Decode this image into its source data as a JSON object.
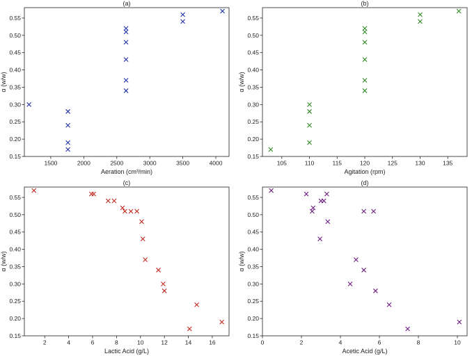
{
  "chart_data": [
    {
      "type": "scatter",
      "title": "(a)",
      "xlabel": "Aeration (cm³/min)",
      "ylabel": "α (w/w)",
      "color": "#1f2fa8",
      "marker": "x",
      "xlim": [
        1100,
        4200
      ],
      "ylim": [
        0.15,
        0.58
      ],
      "xticks": [
        1500,
        2000,
        2500,
        3000,
        3500,
        4000
      ],
      "yticks": [
        0.15,
        0.2,
        0.25,
        0.3,
        0.35,
        0.4,
        0.45,
        0.5,
        0.55
      ],
      "points": [
        [
          1170,
          0.3
        ],
        [
          1760,
          0.28
        ],
        [
          1760,
          0.24
        ],
        [
          1760,
          0.19
        ],
        [
          1760,
          0.17
        ],
        [
          2640,
          0.52
        ],
        [
          2640,
          0.51
        ],
        [
          2640,
          0.48
        ],
        [
          2640,
          0.43
        ],
        [
          2640,
          0.37
        ],
        [
          2640,
          0.34
        ],
        [
          3500,
          0.56
        ],
        [
          3500,
          0.54
        ],
        [
          4100,
          0.57
        ]
      ]
    },
    {
      "type": "scatter",
      "title": "(b)",
      "xlabel": "Agitation (rpm)",
      "ylabel": "α (w/w)",
      "color": "#2e8b22",
      "marker": "x",
      "xlim": [
        101.5,
        138.5
      ],
      "ylim": [
        0.15,
        0.58
      ],
      "xticks": [
        105,
        110,
        115,
        120,
        125,
        130,
        135
      ],
      "yticks": [
        0.15,
        0.2,
        0.25,
        0.3,
        0.35,
        0.4,
        0.45,
        0.5,
        0.55
      ],
      "points": [
        [
          103,
          0.17
        ],
        [
          110,
          0.3
        ],
        [
          110,
          0.28
        ],
        [
          110,
          0.24
        ],
        [
          110,
          0.19
        ],
        [
          120,
          0.52
        ],
        [
          120,
          0.51
        ],
        [
          120,
          0.48
        ],
        [
          120,
          0.43
        ],
        [
          120,
          0.37
        ],
        [
          120,
          0.34
        ],
        [
          130,
          0.56
        ],
        [
          130,
          0.54
        ],
        [
          137,
          0.57
        ]
      ]
    },
    {
      "type": "scatter",
      "title": "(c)",
      "xlabel": "Lactic Acid (g/L)",
      "ylabel": "α (w/w)",
      "color": "#c0271d",
      "marker": "x",
      "xlim": [
        0.3,
        17.4
      ],
      "ylim": [
        0.15,
        0.58
      ],
      "xticks": [
        2,
        4,
        6,
        8,
        10,
        12,
        14,
        16
      ],
      "yticks": [
        0.15,
        0.2,
        0.25,
        0.3,
        0.35,
        0.4,
        0.45,
        0.5,
        0.55
      ],
      "points": [
        [
          1.1,
          0.57
        ],
        [
          5.9,
          0.56
        ],
        [
          6.1,
          0.56
        ],
        [
          7.3,
          0.54
        ],
        [
          7.8,
          0.54
        ],
        [
          8.5,
          0.52
        ],
        [
          8.7,
          0.51
        ],
        [
          9.2,
          0.51
        ],
        [
          9.7,
          0.51
        ],
        [
          10.1,
          0.48
        ],
        [
          10.2,
          0.43
        ],
        [
          10.4,
          0.37
        ],
        [
          11.5,
          0.34
        ],
        [
          11.9,
          0.3
        ],
        [
          12.0,
          0.28
        ],
        [
          14.1,
          0.17
        ],
        [
          14.7,
          0.24
        ],
        [
          16.8,
          0.19
        ]
      ]
    },
    {
      "type": "scatter",
      "title": "(d)",
      "xlabel": "Acetic Acid (g/L)",
      "ylabel": "α (w/w)",
      "color": "#6a1b7d",
      "marker": "x",
      "xlim": [
        0,
        10.5
      ],
      "ylim": [
        0.15,
        0.58
      ],
      "xticks": [
        0,
        2,
        4,
        6,
        8,
        10
      ],
      "yticks": [
        0.15,
        0.2,
        0.25,
        0.3,
        0.35,
        0.4,
        0.45,
        0.5,
        0.55
      ],
      "points": [
        [
          0.45,
          0.57
        ],
        [
          2.25,
          0.56
        ],
        [
          2.6,
          0.52
        ],
        [
          2.55,
          0.51
        ],
        [
          3.0,
          0.54
        ],
        [
          3.15,
          0.54
        ],
        [
          3.3,
          0.56
        ],
        [
          3.35,
          0.48
        ],
        [
          2.95,
          0.43
        ],
        [
          5.2,
          0.51
        ],
        [
          5.7,
          0.51
        ],
        [
          4.8,
          0.37
        ],
        [
          5.2,
          0.34
        ],
        [
          4.5,
          0.3
        ],
        [
          5.8,
          0.28
        ],
        [
          6.5,
          0.24
        ],
        [
          7.45,
          0.17
        ],
        [
          10.1,
          0.19
        ]
      ]
    }
  ]
}
